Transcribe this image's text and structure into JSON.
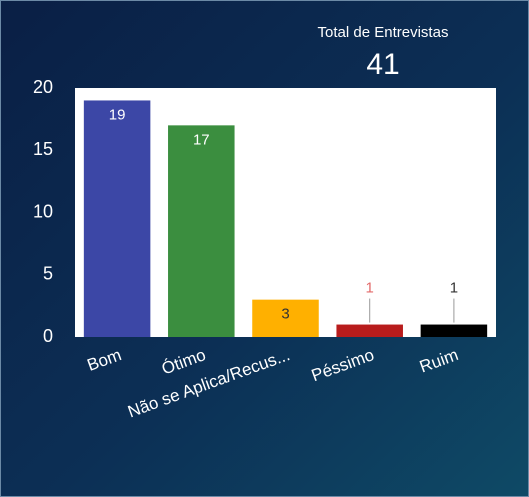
{
  "kpi": {
    "label": "Total de Entrevistas",
    "value": 41
  },
  "chart_data": {
    "type": "bar",
    "categories": [
      "Bom",
      "Ótimo",
      "Não se Aplica/Recus...",
      "Péssimo",
      "Ruim"
    ],
    "values": [
      19,
      17,
      3,
      1,
      1
    ],
    "colors": [
      "#3c47a6",
      "#3b8e3f",
      "#ffb000",
      "#b81c1c",
      "#000000"
    ],
    "label_colors": [
      "#ffffff",
      "#ffffff",
      "#333333",
      "#e36b6b",
      "#333333"
    ],
    "ylim": [
      0,
      20
    ],
    "yticks": [
      0,
      5,
      10,
      15,
      20
    ],
    "grid": false
  }
}
